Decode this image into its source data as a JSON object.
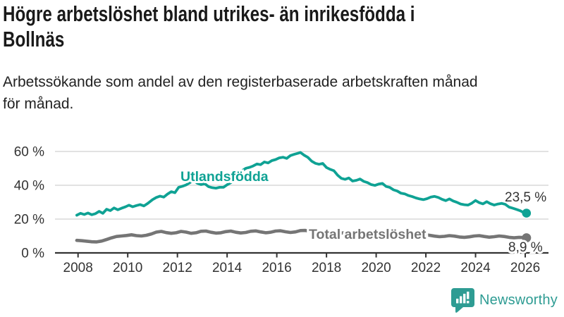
{
  "header": {
    "title": "Högre arbetslöshet bland utrikes- än inrikesfödda i Bollnäs",
    "title_lines": [
      "Högre arbetslöshet bland utrikes- än inrikesfödda i",
      "Bollnäs"
    ],
    "subtitle": "Arbetssökande som andel av den registerbaserade arbetskraften månad för månad.",
    "subtitle_lines": [
      "Arbetssökande som andel av den registerbaserade arbetskraften månad",
      "för månad."
    ]
  },
  "colors": {
    "teal": "#0fa294",
    "gray": "#757575",
    "axis": "#333333",
    "grid": "#d9d9d9",
    "text": "#1a1a1a",
    "logo": "#2e9c93"
  },
  "chart_data": {
    "type": "line",
    "unit": "%",
    "grid": true,
    "x_ticks": [
      2008,
      2010,
      2012,
      2014,
      2016,
      2018,
      2020,
      2022,
      2024,
      2026
    ],
    "x_range": [
      2007.9,
      2026.1
    ],
    "y_ticks": [
      {
        "value": 0,
        "label": "0 %"
      },
      {
        "value": 20,
        "label": "20 %"
      },
      {
        "value": 40,
        "label": "40 %"
      },
      {
        "value": 60,
        "label": "60 %"
      }
    ],
    "y_range": [
      0,
      66
    ],
    "series": [
      {
        "name": "Total arbetslöshet",
        "color": "#757575",
        "end_label": "8,9 %",
        "end_value": 8.9,
        "points": [
          [
            2007.95,
            7.4
          ],
          [
            2008.15,
            7.2
          ],
          [
            2008.35,
            6.9
          ],
          [
            2008.55,
            6.6
          ],
          [
            2008.75,
            6.5
          ],
          [
            2008.95,
            7.0
          ],
          [
            2009.15,
            7.9
          ],
          [
            2009.35,
            8.9
          ],
          [
            2009.55,
            9.7
          ],
          [
            2009.75,
            10.0
          ],
          [
            2009.95,
            10.3
          ],
          [
            2010.15,
            10.7
          ],
          [
            2010.35,
            10.2
          ],
          [
            2010.55,
            10.0
          ],
          [
            2010.75,
            10.4
          ],
          [
            2010.95,
            11.2
          ],
          [
            2011.15,
            12.3
          ],
          [
            2011.35,
            12.7
          ],
          [
            2011.55,
            12.0
          ],
          [
            2011.75,
            11.6
          ],
          [
            2011.95,
            11.9
          ],
          [
            2012.15,
            12.7
          ],
          [
            2012.35,
            12.3
          ],
          [
            2012.55,
            11.6
          ],
          [
            2012.75,
            11.9
          ],
          [
            2012.95,
            12.8
          ],
          [
            2013.15,
            12.9
          ],
          [
            2013.35,
            12.2
          ],
          [
            2013.55,
            11.7
          ],
          [
            2013.75,
            11.9
          ],
          [
            2013.95,
            12.6
          ],
          [
            2014.15,
            12.9
          ],
          [
            2014.35,
            12.2
          ],
          [
            2014.55,
            11.8
          ],
          [
            2014.75,
            12.1
          ],
          [
            2014.95,
            12.8
          ],
          [
            2015.15,
            13.0
          ],
          [
            2015.35,
            12.4
          ],
          [
            2015.55,
            11.9
          ],
          [
            2015.75,
            12.2
          ],
          [
            2015.95,
            12.9
          ],
          [
            2016.15,
            13.1
          ],
          [
            2016.35,
            12.5
          ],
          [
            2016.55,
            12.1
          ],
          [
            2016.75,
            12.4
          ],
          [
            2016.95,
            13.2
          ],
          [
            2017.15,
            13.3
          ],
          [
            2017.35,
            12.7
          ],
          [
            2017.55,
            12.2
          ],
          [
            2017.75,
            12.5
          ],
          [
            2017.95,
            13.0
          ],
          [
            2018.15,
            12.6
          ],
          [
            2018.35,
            12.1
          ],
          [
            2018.55,
            11.7
          ],
          [
            2018.75,
            11.9
          ],
          [
            2018.95,
            12.2
          ],
          [
            2019.15,
            11.8
          ],
          [
            2019.35,
            11.3
          ],
          [
            2019.55,
            11.0
          ],
          [
            2019.75,
            11.2
          ],
          [
            2019.95,
            11.6
          ],
          [
            2020.15,
            12.2
          ],
          [
            2020.35,
            12.4
          ],
          [
            2020.55,
            11.9
          ],
          [
            2020.75,
            11.5
          ],
          [
            2020.95,
            11.6
          ],
          [
            2021.15,
            11.2
          ],
          [
            2021.35,
            10.7
          ],
          [
            2021.55,
            10.3
          ],
          [
            2021.75,
            10.5
          ],
          [
            2021.95,
            10.8
          ],
          [
            2022.15,
            10.4
          ],
          [
            2022.35,
            9.9
          ],
          [
            2022.55,
            9.6
          ],
          [
            2022.75,
            9.8
          ],
          [
            2022.95,
            10.2
          ],
          [
            2023.15,
            9.9
          ],
          [
            2023.35,
            9.4
          ],
          [
            2023.55,
            9.2
          ],
          [
            2023.75,
            9.5
          ],
          [
            2023.95,
            10.0
          ],
          [
            2024.15,
            10.2
          ],
          [
            2024.35,
            9.7
          ],
          [
            2024.55,
            9.3
          ],
          [
            2024.75,
            9.6
          ],
          [
            2024.95,
            10.0
          ],
          [
            2025.15,
            9.7
          ],
          [
            2025.35,
            9.2
          ],
          [
            2025.55,
            8.9
          ],
          [
            2025.75,
            9.2
          ],
          [
            2025.95,
            9.1
          ],
          [
            2026.05,
            8.9
          ]
        ]
      },
      {
        "name": "Utlandsfödda",
        "color": "#0fa294",
        "end_label": "23,5 %",
        "end_value": 23.5,
        "points": [
          [
            2007.95,
            22.3
          ],
          [
            2008.1,
            23.4
          ],
          [
            2008.25,
            22.7
          ],
          [
            2008.4,
            23.6
          ],
          [
            2008.55,
            22.6
          ],
          [
            2008.7,
            23.2
          ],
          [
            2008.85,
            24.6
          ],
          [
            2009.0,
            23.4
          ],
          [
            2009.15,
            25.8
          ],
          [
            2009.3,
            25.0
          ],
          [
            2009.45,
            26.6
          ],
          [
            2009.6,
            25.5
          ],
          [
            2009.75,
            26.4
          ],
          [
            2009.9,
            27.2
          ],
          [
            2010.05,
            28.2
          ],
          [
            2010.2,
            27.3
          ],
          [
            2010.35,
            28.0
          ],
          [
            2010.5,
            28.6
          ],
          [
            2010.65,
            27.8
          ],
          [
            2010.8,
            29.2
          ],
          [
            2011.0,
            31.5
          ],
          [
            2011.15,
            32.8
          ],
          [
            2011.3,
            33.6
          ],
          [
            2011.45,
            33.0
          ],
          [
            2011.6,
            34.8
          ],
          [
            2011.75,
            36.2
          ],
          [
            2011.9,
            35.6
          ],
          [
            2012.05,
            38.8
          ],
          [
            2012.2,
            39.4
          ],
          [
            2012.35,
            40.2
          ],
          [
            2012.5,
            41.6
          ],
          [
            2012.65,
            43.0
          ],
          [
            2012.8,
            41.2
          ],
          [
            2012.95,
            40.4
          ],
          [
            2013.1,
            40.9
          ],
          [
            2013.25,
            39.2
          ],
          [
            2013.4,
            38.6
          ],
          [
            2013.55,
            38.3
          ],
          [
            2013.7,
            38.8
          ],
          [
            2013.85,
            38.8
          ],
          [
            2014.0,
            40.3
          ],
          [
            2014.15,
            41.6
          ],
          [
            2014.3,
            43.2
          ],
          [
            2014.45,
            45.8
          ],
          [
            2014.6,
            48.6
          ],
          [
            2014.75,
            50.0
          ],
          [
            2014.9,
            50.6
          ],
          [
            2015.05,
            51.4
          ],
          [
            2015.2,
            52.6
          ],
          [
            2015.35,
            52.2
          ],
          [
            2015.5,
            53.8
          ],
          [
            2015.65,
            53.2
          ],
          [
            2015.8,
            54.6
          ],
          [
            2015.95,
            55.2
          ],
          [
            2016.1,
            56.2
          ],
          [
            2016.25,
            56.6
          ],
          [
            2016.4,
            55.9
          ],
          [
            2016.55,
            57.6
          ],
          [
            2016.7,
            58.3
          ],
          [
            2016.85,
            58.9
          ],
          [
            2016.95,
            59.4
          ],
          [
            2017.1,
            57.8
          ],
          [
            2017.25,
            56.5
          ],
          [
            2017.4,
            54.3
          ],
          [
            2017.55,
            53.0
          ],
          [
            2017.7,
            52.4
          ],
          [
            2017.85,
            52.9
          ],
          [
            2018.0,
            50.5
          ],
          [
            2018.15,
            49.4
          ],
          [
            2018.3,
            48.6
          ],
          [
            2018.45,
            45.9
          ],
          [
            2018.6,
            44.1
          ],
          [
            2018.75,
            43.5
          ],
          [
            2018.9,
            44.3
          ],
          [
            2019.05,
            42.5
          ],
          [
            2019.2,
            42.9
          ],
          [
            2019.35,
            43.7
          ],
          [
            2019.5,
            42.3
          ],
          [
            2019.65,
            41.6
          ],
          [
            2019.8,
            40.4
          ],
          [
            2019.95,
            39.9
          ],
          [
            2020.1,
            40.7
          ],
          [
            2020.25,
            41.1
          ],
          [
            2020.4,
            39.3
          ],
          [
            2020.55,
            38.7
          ],
          [
            2020.7,
            37.3
          ],
          [
            2020.85,
            36.6
          ],
          [
            2021.0,
            35.3
          ],
          [
            2021.15,
            34.9
          ],
          [
            2021.3,
            33.9
          ],
          [
            2021.45,
            33.3
          ],
          [
            2021.6,
            32.5
          ],
          [
            2021.75,
            31.9
          ],
          [
            2021.9,
            31.5
          ],
          [
            2022.05,
            32.1
          ],
          [
            2022.2,
            33.0
          ],
          [
            2022.35,
            33.4
          ],
          [
            2022.5,
            32.8
          ],
          [
            2022.65,
            31.7
          ],
          [
            2022.8,
            30.9
          ],
          [
            2022.95,
            31.9
          ],
          [
            2023.1,
            30.7
          ],
          [
            2023.25,
            29.9
          ],
          [
            2023.4,
            28.9
          ],
          [
            2023.55,
            28.5
          ],
          [
            2023.7,
            28.3
          ],
          [
            2023.85,
            29.4
          ],
          [
            2024.0,
            31.0
          ],
          [
            2024.15,
            29.7
          ],
          [
            2024.3,
            29.0
          ],
          [
            2024.45,
            30.3
          ],
          [
            2024.6,
            29.1
          ],
          [
            2024.75,
            28.3
          ],
          [
            2024.9,
            28.9
          ],
          [
            2025.05,
            29.3
          ],
          [
            2025.2,
            28.7
          ],
          [
            2025.35,
            27.1
          ],
          [
            2025.5,
            26.4
          ],
          [
            2025.65,
            25.7
          ],
          [
            2025.8,
            24.9
          ],
          [
            2025.95,
            23.7
          ],
          [
            2026.05,
            23.5
          ]
        ]
      }
    ]
  },
  "branding": {
    "name": "Newsworthy",
    "icon": "newsworthy-chart-bubble-icon"
  }
}
